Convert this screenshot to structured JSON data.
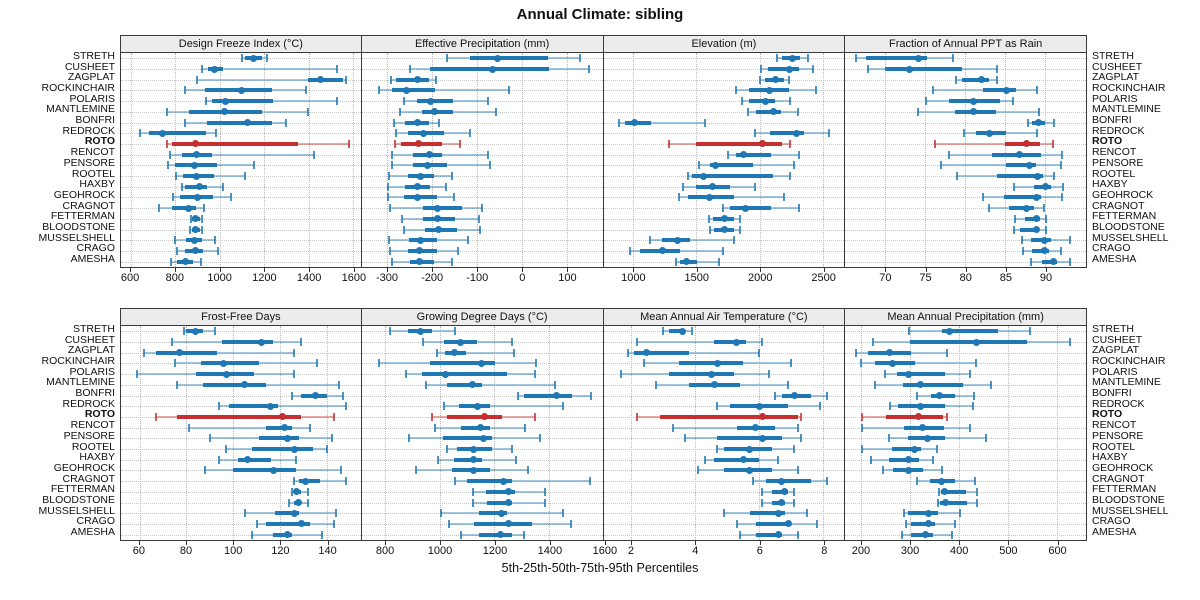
{
  "title": "Annual Climate: sibling",
  "caption": "5th-25th-50th-75th-95th Percentiles",
  "highlight_station": "ROTO",
  "colors": {
    "series": "#1f77b4",
    "highlight": "#c62f2f",
    "header_bg": "#ececec",
    "grid": "#b8b8b8",
    "panel_border": "#3a3a3a"
  },
  "stations": [
    "STRETH",
    "CUSHEET",
    "ZAGPLAT",
    "ROCKINCHAIR",
    "POLARIS",
    "MANTLEMINE",
    "BONFRI",
    "REDROCK",
    "ROTO",
    "RENCOT",
    "PENSORE",
    "ROOTEL",
    "HAXBY",
    "GEOHROCK",
    "CRAGNOT",
    "FETTERMAN",
    "BLOODSTONE",
    "MUSSELSHELL",
    "CRAGO",
    "AMESHA"
  ],
  "percentiles": [
    "5th",
    "25th",
    "50th",
    "75th",
    "95th"
  ],
  "chart_data": [
    {
      "type": "interval",
      "title": "Design Freeze Index (°C)",
      "ticks": [
        600,
        800,
        1000,
        1200,
        1400,
        1600
      ],
      "xlim": [
        555,
        1635
      ],
      "rows": [
        [
          1100,
          1114,
          1151,
          1188,
          1214
        ],
        [
          920,
          945,
          978,
          1015,
          1529
        ],
        [
          899,
          1396,
          1452,
          1555,
          1570
        ],
        [
          845,
          933,
          1099,
          1233,
          1388
        ],
        [
          936,
          963,
          1025,
          1240,
          1529
        ],
        [
          763,
          862,
          1022,
          1188,
          1396
        ],
        [
          845,
          944,
          1126,
          1233,
          1299
        ],
        [
          640,
          681,
          741,
          936,
          981
        ],
        [
          761,
          785,
          889,
          1351,
          1581
        ],
        [
          776,
          830,
          895,
          963,
          1425
        ],
        [
          766,
          800,
          884,
          988,
          1156
        ],
        [
          803,
          833,
          895,
          973,
          1114
        ],
        [
          830,
          844,
          910,
          944,
          1013
        ],
        [
          791,
          821,
          899,
          969,
          1052
        ],
        [
          726,
          785,
          859,
          895,
          929
        ],
        [
          870,
          877,
          892,
          910,
          919
        ],
        [
          865,
          874,
          889,
          910,
          919
        ],
        [
          800,
          850,
          884,
          919,
          978
        ],
        [
          806,
          844,
          889,
          925,
          993
        ],
        [
          781,
          806,
          844,
          880,
          914
        ]
      ]
    },
    {
      "type": "interval",
      "title": "Effective Precipitation (mm)",
      "ticks": [
        -300,
        -200,
        -100,
        0,
        100
      ],
      "xlim": [
        -356,
        180
      ],
      "rows": [
        [
          -167,
          -115,
          -53,
          58,
          130
        ],
        [
          -249,
          -203,
          -64,
          60,
          151
        ],
        [
          -290,
          -279,
          -231,
          -207,
          -190
        ],
        [
          -318,
          -288,
          -256,
          -192,
          -29
        ],
        [
          -263,
          -233,
          -202,
          -152,
          -74
        ],
        [
          -270,
          -222,
          -194,
          -152,
          -56
        ],
        [
          -285,
          -259,
          -233,
          -207,
          -185
        ],
        [
          -280,
          -253,
          -219,
          -174,
          -115
        ],
        [
          -281,
          -268,
          -230,
          -178,
          -137
        ],
        [
          -289,
          -243,
          -206,
          -178,
          -74
        ],
        [
          -289,
          -241,
          -210,
          -167,
          -70
        ],
        [
          -296,
          -252,
          -226,
          -196,
          -156
        ],
        [
          -298,
          -259,
          -231,
          -204,
          -169
        ],
        [
          -298,
          -261,
          -233,
          -189,
          -150
        ],
        [
          -293,
          -219,
          -187,
          -133,
          -89
        ],
        [
          -267,
          -219,
          -187,
          -148,
          -96
        ],
        [
          -263,
          -216,
          -185,
          -144,
          -93
        ],
        [
          -296,
          -250,
          -226,
          -189,
          -119
        ],
        [
          -293,
          -252,
          -228,
          -189,
          -141
        ],
        [
          -289,
          -248,
          -228,
          -196,
          -154
        ]
      ]
    },
    {
      "type": "interval",
      "title": "Elevation (m)",
      "ticks": [
        1000,
        1500,
        2000,
        2500
      ],
      "xlim": [
        765,
        2670
      ],
      "rows": [
        [
          2135,
          2175,
          2260,
          2320,
          2385
        ],
        [
          2010,
          2070,
          2235,
          2315,
          2425
        ],
        [
          2000,
          2045,
          2130,
          2190,
          2235
        ],
        [
          1815,
          1920,
          2080,
          2230,
          2445
        ],
        [
          1860,
          1920,
          2045,
          2125,
          2240
        ],
        [
          1905,
          1975,
          2110,
          2170,
          2305
        ],
        [
          890,
          935,
          1010,
          1145,
          1570
        ],
        [
          1960,
          2080,
          2295,
          2350,
          2550
        ],
        [
          1285,
          1500,
          2025,
          2175,
          2240
        ],
        [
          1750,
          1815,
          1870,
          2090,
          2315
        ],
        [
          1520,
          1605,
          1650,
          1950,
          2270
        ],
        [
          1435,
          1465,
          1560,
          2105,
          2240
        ],
        [
          1395,
          1495,
          1625,
          1765,
          1960
        ],
        [
          1360,
          1435,
          1605,
          1800,
          2195
        ],
        [
          1710,
          1765,
          1885,
          2090,
          2315
        ],
        [
          1600,
          1635,
          1720,
          1800,
          1845
        ],
        [
          1605,
          1640,
          1720,
          1795,
          1845
        ],
        [
          1135,
          1225,
          1350,
          1450,
          1800
        ],
        [
          975,
          1055,
          1230,
          1370,
          1710
        ],
        [
          1335,
          1370,
          1425,
          1505,
          1675
        ]
      ]
    },
    {
      "type": "interval",
      "title": "Fraction of Annual PPT as Rain",
      "ticks": [
        70,
        75,
        80,
        85,
        90
      ],
      "xlim": [
        65.0,
        95.1
      ],
      "rows": [
        [
          66.4,
          67.6,
          74.1,
          75.2,
          78.5
        ],
        [
          67.9,
          70.0,
          73.0,
          79.6,
          84.0
        ],
        [
          78.9,
          79.6,
          82.0,
          83.0,
          84.0
        ],
        [
          76.0,
          82.2,
          85.1,
          86.4,
          89.0
        ],
        [
          75.1,
          78.0,
          81.0,
          84.3,
          86.0
        ],
        [
          74.1,
          78.7,
          81.0,
          83.9,
          89.2
        ],
        [
          87.8,
          88.3,
          89.1,
          90.0,
          91.1
        ],
        [
          79.8,
          81.3,
          83.0,
          85.1,
          89.0
        ],
        [
          76.2,
          85.0,
          87.6,
          89.4,
          91.0
        ],
        [
          78.0,
          83.3,
          86.8,
          89.5,
          92.1
        ],
        [
          77.0,
          85.1,
          88.0,
          88.9,
          92.0
        ],
        [
          79.0,
          84.0,
          89.0,
          89.7,
          91.1
        ],
        [
          86.1,
          88.6,
          90.0,
          90.7,
          92.2
        ],
        [
          82.2,
          84.8,
          88.9,
          89.5,
          92.1
        ],
        [
          83.0,
          85.5,
          87.6,
          88.6,
          89.9
        ],
        [
          86.2,
          87.5,
          88.9,
          89.3,
          90.1
        ],
        [
          86.1,
          86.8,
          88.9,
          89.2,
          90.1
        ],
        [
          87.1,
          88.2,
          89.9,
          90.7,
          93.1
        ],
        [
          87.2,
          88.3,
          89.9,
          90.5,
          92.0
        ],
        [
          88.2,
          89.6,
          91.0,
          91.5,
          93.1
        ]
      ]
    },
    {
      "type": "interval",
      "title": "Frost-Free Days",
      "ticks": [
        60,
        80,
        100,
        120,
        140
      ],
      "xlim": [
        52,
        154.5
      ],
      "rows": [
        [
          79,
          80,
          84,
          87,
          92
        ],
        [
          74,
          95,
          112,
          117,
          129
        ],
        [
          62,
          67,
          77,
          93,
          126
        ],
        [
          75,
          86,
          96,
          111,
          136
        ],
        [
          59,
          84,
          97,
          109,
          126
        ],
        [
          76,
          87,
          105,
          114,
          145
        ],
        [
          125,
          129,
          135,
          140,
          147
        ],
        [
          94,
          98,
          116,
          119,
          148
        ],
        [
          67,
          76,
          121,
          129,
          143
        ],
        [
          81,
          114,
          122,
          125,
          133
        ],
        [
          90,
          111,
          123,
          128,
          142
        ],
        [
          97,
          108,
          126,
          134,
          140
        ],
        [
          94,
          102,
          106,
          116,
          127
        ],
        [
          88,
          100,
          117,
          127,
          146
        ],
        [
          126,
          128,
          131,
          137,
          148
        ],
        [
          125,
          126,
          127,
          129,
          132
        ],
        [
          124,
          126,
          128,
          129,
          132
        ],
        [
          105,
          118,
          126,
          128,
          144
        ],
        [
          110,
          114,
          129,
          133,
          143
        ],
        [
          108,
          117,
          123,
          125,
          138
        ]
      ]
    },
    {
      "type": "interval",
      "title": "Growing Degree Days (°C)",
      "ticks": [
        800,
        1000,
        1200,
        1400,
        1600
      ],
      "xlim": [
        715,
        1595
      ],
      "rows": [
        [
          820,
          885,
          930,
          970,
          1055
        ],
        [
          940,
          1015,
          1075,
          1135,
          1265
        ],
        [
          990,
          1020,
          1055,
          1095,
          1270
        ],
        [
          778,
          965,
          1154,
          1202,
          1351
        ],
        [
          875,
          935,
          1020,
          1245,
          1348
        ],
        [
          950,
          1028,
          1118,
          1155,
          1420
        ],
        [
          1285,
          1307,
          1428,
          1485,
          1554
        ],
        [
          1015,
          1070,
          1137,
          1182,
          1452
        ],
        [
          972,
          1028,
          1164,
          1227,
          1348
        ],
        [
          982,
          1076,
          1149,
          1185,
          1312
        ],
        [
          887,
          1012,
          1161,
          1190,
          1367
        ],
        [
          1028,
          1064,
          1125,
          1190,
          1263
        ],
        [
          992,
          1052,
          1125,
          1154,
          1279
        ],
        [
          912,
          1045,
          1125,
          1182,
          1324
        ],
        [
          1057,
          1101,
          1234,
          1263,
          1549
        ],
        [
          1121,
          1170,
          1251,
          1275,
          1384
        ],
        [
          1121,
          1173,
          1251,
          1263,
          1384
        ],
        [
          1004,
          1145,
          1227,
          1246,
          1452
        ],
        [
          1033,
          1125,
          1251,
          1336,
          1479
        ],
        [
          1076,
          1142,
          1222,
          1263,
          1307
        ]
      ]
    },
    {
      "type": "interval",
      "title": "Mean Annual Air Temperature (°C)",
      "ticks": [
        2,
        4,
        6,
        8
      ],
      "xlim": [
        1.15,
        8.65
      ],
      "rows": [
        [
          3.0,
          3.2,
          3.6,
          3.7,
          3.9
        ],
        [
          2.2,
          4.6,
          5.3,
          5.6,
          6.1
        ],
        [
          1.9,
          2.1,
          2.5,
          3.8,
          6.0
        ],
        [
          2.4,
          3.5,
          4.7,
          5.5,
          7.0
        ],
        [
          1.7,
          3.2,
          4.5,
          5.2,
          6.3
        ],
        [
          2.8,
          3.8,
          4.6,
          5.4,
          6.9
        ],
        [
          6.5,
          6.7,
          7.1,
          7.6,
          8.1
        ],
        [
          4.7,
          5.1,
          6.0,
          6.9,
          7.9
        ],
        [
          2.2,
          2.9,
          6.1,
          7.2,
          7.3
        ],
        [
          3.3,
          5.3,
          5.9,
          6.5,
          7.2
        ],
        [
          3.7,
          4.7,
          6.1,
          6.7,
          7.3
        ],
        [
          4.7,
          4.9,
          5.7,
          6.4,
          7.1
        ],
        [
          4.3,
          4.6,
          5.5,
          6.0,
          6.6
        ],
        [
          4.1,
          4.9,
          5.7,
          6.4,
          7.2
        ],
        [
          5.8,
          6.2,
          6.7,
          7.6,
          8.1
        ],
        [
          6.1,
          6.4,
          6.8,
          6.9,
          7.1
        ],
        [
          6.1,
          6.4,
          6.7,
          6.8,
          7.1
        ],
        [
          4.9,
          5.7,
          6.6,
          6.8,
          7.5
        ],
        [
          5.3,
          5.9,
          6.9,
          7.0,
          7.8
        ],
        [
          5.4,
          5.9,
          6.6,
          6.7,
          7.2
        ]
      ]
    },
    {
      "type": "interval",
      "title": "Mean Annual Precipitation (mm)",
      "ticks": [
        200,
        300,
        400,
        500,
        600
      ],
      "xlim": [
        168,
        660
      ],
      "rows": [
        [
          298,
          365,
          381,
          480,
          546
        ],
        [
          224,
          300,
          436,
          540,
          628
        ],
        [
          191,
          214,
          258,
          303,
          375
        ],
        [
          200,
          228,
          264,
          310,
          436
        ],
        [
          250,
          274,
          298,
          372,
          422
        ],
        [
          228,
          287,
          322,
          408,
          466
        ],
        [
          315,
          344,
          360,
          392,
          432
        ],
        [
          260,
          275,
          322,
          372,
          430
        ],
        [
          203,
          252,
          317,
          368,
          375
        ],
        [
          203,
          289,
          326,
          370,
          423
        ],
        [
          257,
          296,
          337,
          372,
          456
        ],
        [
          203,
          264,
          309,
          322,
          355
        ],
        [
          221,
          257,
          298,
          318,
          348
        ],
        [
          245,
          265,
          298,
          326,
          366
        ],
        [
          315,
          341,
          364,
          393,
          434
        ],
        [
          359,
          364,
          370,
          414,
          437
        ],
        [
          357,
          362,
          372,
          417,
          437
        ],
        [
          288,
          297,
          338,
          357,
          403
        ],
        [
          293,
          302,
          338,
          352,
          393
        ],
        [
          283,
          302,
          331,
          348,
          386
        ]
      ]
    }
  ]
}
